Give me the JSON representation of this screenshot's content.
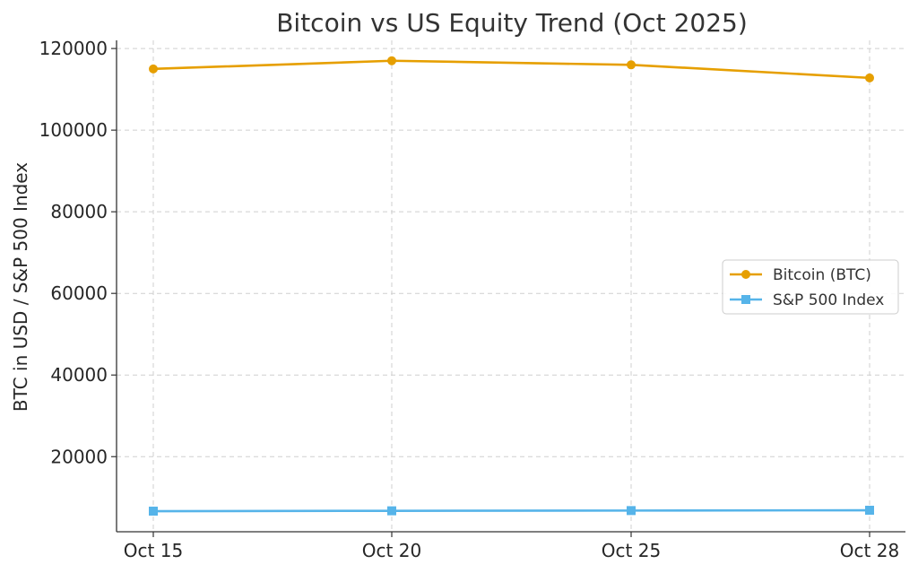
{
  "chart_data": {
    "type": "line",
    "title": "Bitcoin vs US Equity Trend (Oct 2025)",
    "xlabel": "",
    "ylabel": "BTC in USD / S&P 500 Index",
    "categories": [
      "Oct 15",
      "Oct 20",
      "Oct 25",
      "Oct 28"
    ],
    "ylim": [
      1600,
      122000
    ],
    "yticks": [
      20000,
      40000,
      60000,
      80000,
      100000,
      120000
    ],
    "grid": true,
    "legend_position": "center-right",
    "series": [
      {
        "name": "Bitcoin (BTC)",
        "values": [
          115000,
          117000,
          116000,
          112800
        ],
        "color": "#e69f00",
        "marker": "circle"
      },
      {
        "name": "S&P 500 Index",
        "values": [
          6650,
          6730,
          6790,
          6870
        ],
        "color": "#56b4e9",
        "marker": "square"
      }
    ]
  }
}
